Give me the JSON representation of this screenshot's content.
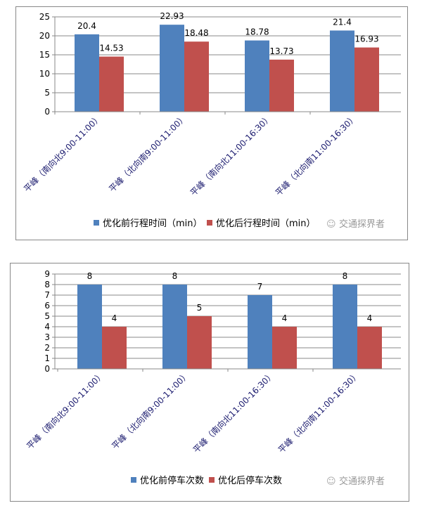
{
  "chart_data": [
    {
      "type": "bar",
      "title": "",
      "categories": [
        "平峰（南向北9:00-11:00）",
        "平峰（北向南9:00-11:00）",
        "平峰（南向北11:00-16:30）",
        "平峰（北向南11:00-16:30）"
      ],
      "series": [
        {
          "name": "优化前行程时间（min）",
          "color": "#4f81bd",
          "values": [
            20.4,
            22.93,
            18.78,
            21.4
          ]
        },
        {
          "name": "优化后行程时间（min）",
          "color": "#c0504d",
          "values": [
            14.53,
            18.48,
            13.73,
            16.93
          ]
        }
      ],
      "ylim": [
        0,
        25
      ],
      "yticks": [
        0,
        5,
        10,
        15,
        20,
        25
      ],
      "grid": true,
      "legend": "bottom"
    },
    {
      "type": "bar",
      "title": "",
      "categories": [
        "平峰（南向北9:00-11:00）",
        "平峰（北向南9:00-11:00）",
        "平峰（南向北11:00-16:30）",
        "平峰（北向南11:00-16:30）"
      ],
      "series": [
        {
          "name": "优化前停车次数",
          "color": "#4f81bd",
          "values": [
            8,
            8,
            7,
            8
          ]
        },
        {
          "name": "优化后停车次数",
          "color": "#c0504d",
          "values": [
            4,
            5,
            4,
            4
          ]
        }
      ],
      "ylim": [
        0,
        9
      ],
      "yticks": [
        0,
        1,
        2,
        3,
        4,
        5,
        6,
        7,
        8,
        9
      ],
      "grid": true,
      "legend": "bottom"
    }
  ],
  "watermark": "交通探界者"
}
